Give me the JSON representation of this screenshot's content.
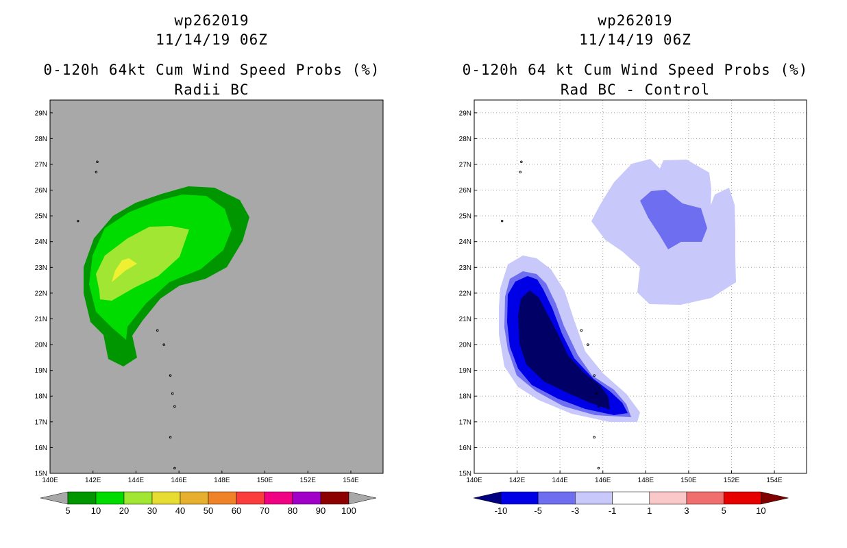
{
  "left_panel": {
    "storm_id": "wp262019",
    "datetime": "11/14/19 06Z",
    "product": "0-120h 64kt Cum Wind Speed Probs (%)",
    "subtitle": "Radii BC",
    "colorbar": {
      "labels": [
        "5",
        "10",
        "20",
        "30",
        "40",
        "50",
        "60",
        "70",
        "80",
        "90",
        "100"
      ],
      "colors": [
        "#009600",
        "#00dc00",
        "#a0e632",
        "#e6dc32",
        "#e6af2d",
        "#f08228",
        "#fa3c3c",
        "#f00082",
        "#a000c8",
        "#8c0000"
      ]
    }
  },
  "right_panel": {
    "storm_id": "wp262019",
    "datetime": "11/14/19 06Z",
    "product": "0-120h 64 kt Cum Wind Speed Probs (%)",
    "subtitle": "Rad BC - Control",
    "colorbar": {
      "labels": [
        "-10",
        "-5",
        "-3",
        "-1",
        "1",
        "3",
        "5",
        "10"
      ],
      "colors": [
        "#0000e6",
        "#6e6ef0",
        "#c8c8fa",
        "#ffffff",
        "#fac8c8",
        "#f06e6e",
        "#e60000"
      ]
    }
  },
  "axes": {
    "lat_labels": [
      "15N",
      "16N",
      "17N",
      "18N",
      "19N",
      "20N",
      "21N",
      "22N",
      "23N",
      "24N",
      "25N",
      "26N",
      "27N",
      "28N",
      "29N"
    ],
    "lon_labels": [
      "140E",
      "142E",
      "144E",
      "146E",
      "148E",
      "150E",
      "152E",
      "154E"
    ],
    "lat_range": [
      15,
      29.5
    ],
    "lon_range": [
      140,
      155.5
    ]
  },
  "colors": {
    "map_background_left": "#a8a8a8",
    "map_background_right": "#ffffff",
    "grid": "#a0a0a0"
  }
}
